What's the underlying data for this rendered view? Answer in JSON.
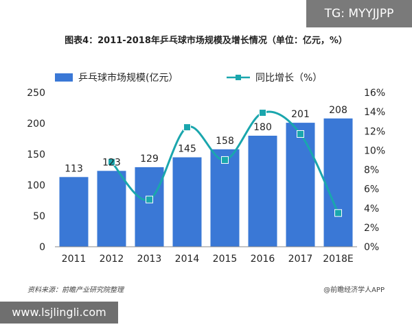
{
  "overlays": {
    "tag": "TG: MYYJJPP",
    "site": "www.lsjlingli.com"
  },
  "title": "图表4：2011-2018年乒乓球市场规模及增长情况（单位：亿元，%）",
  "footer": {
    "source": "资料来源：前瞻产业研究院整理",
    "brand": "@前瞻经济学人APP"
  },
  "chart_data": {
    "type": "bar",
    "categories": [
      "2011",
      "2012",
      "2013",
      "2014",
      "2015",
      "2016",
      "2017",
      "2018E"
    ],
    "series": [
      {
        "name": "乒乓球市场规模(亿元）",
        "type": "bar",
        "axis": "left",
        "color": "#3a78d6",
        "values": [
          113,
          123,
          129,
          145,
          158,
          180,
          201,
          208
        ]
      },
      {
        "name": "同比增长（%）",
        "type": "line",
        "axis": "right",
        "color": "#1aa6ad",
        "values": [
          null,
          8.8,
          4.9,
          12.4,
          9.0,
          13.9,
          11.7,
          3.5
        ]
      }
    ],
    "y_left": {
      "min": 0,
      "max": 250,
      "ticks": [
        "0",
        "50",
        "100",
        "150",
        "200",
        "250"
      ]
    },
    "y_right": {
      "min": 0,
      "max": 16,
      "ticks": [
        "0%",
        "2%",
        "4%",
        "6%",
        "8%",
        "10%",
        "12%",
        "14%",
        "16%"
      ]
    },
    "legend_position": "top",
    "grid": false
  }
}
